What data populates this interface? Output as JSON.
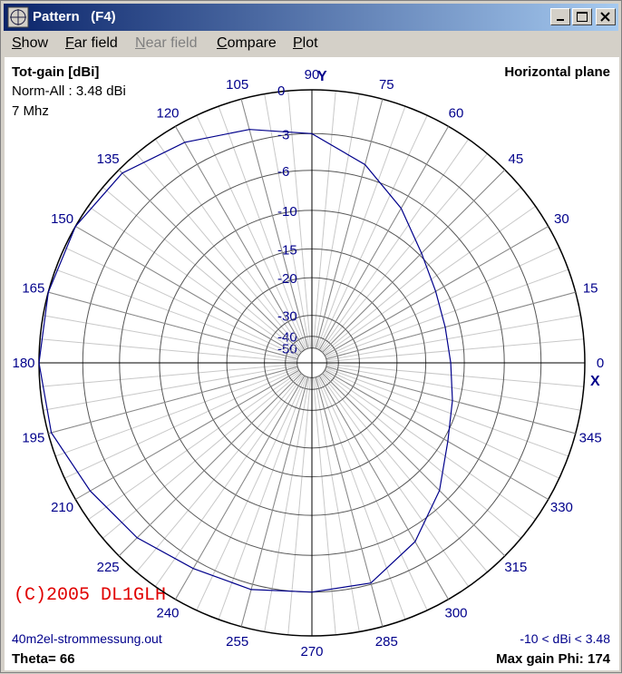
{
  "window": {
    "title": "Pattern   (F4)"
  },
  "menu": [
    {
      "label": "Show",
      "enabled": true
    },
    {
      "label": "Far field",
      "enabled": true
    },
    {
      "label": "Near field",
      "enabled": false
    },
    {
      "label": "Compare",
      "enabled": true
    },
    {
      "label": "Plot",
      "enabled": true
    }
  ],
  "plot": {
    "header_left": [
      "Tot-gain [dBi]",
      "Norm-All : 3.48 dBi",
      "7 Mhz"
    ],
    "header_right": "Horizontal plane",
    "copyright": "(C)2005 DL1GLH",
    "file": "40m2el-strommessung.out",
    "range": "-10 < dBi < 3.48",
    "theta": "Theta= 66",
    "max_gain": "Max gain Phi: 174",
    "axis_x": "X",
    "axis_y": "Y",
    "angle_ticks": [
      0,
      15,
      30,
      45,
      60,
      75,
      90,
      105,
      120,
      135,
      150,
      165,
      180,
      195,
      210,
      225,
      240,
      255,
      270,
      285,
      300,
      315,
      330,
      345
    ],
    "ring_ticks": [
      0,
      -3,
      -6,
      -10,
      -15,
      -20,
      -30,
      -40,
      -50
    ],
    "color": "#00008b",
    "pattern": {
      "angles": [
        0,
        15,
        30,
        45,
        60,
        75,
        90,
        105,
        120,
        135,
        150,
        165,
        180,
        195,
        210,
        225,
        240,
        255,
        270,
        285,
        300,
        315,
        330,
        345
      ],
      "gains": [
        -11.6,
        -11.7,
        -11.1,
        -9.7,
        -7.3,
        -4.9,
        -3.0,
        -2.1,
        -1.2,
        -0.3,
        0,
        0,
        0,
        -0.2,
        -1.1,
        -1.7,
        -2.4,
        -2.6,
        -3.0,
        -3.1,
        -4.8,
        -7.1,
        -9.5,
        -10.8
      ]
    }
  }
}
